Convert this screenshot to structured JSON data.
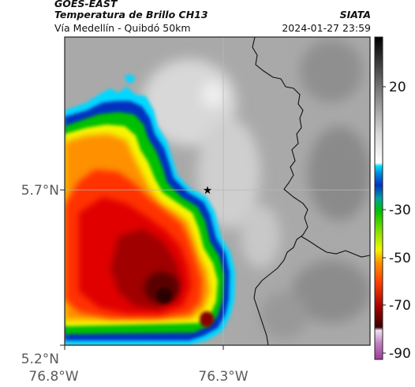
{
  "header": {
    "title_line1": "GOES-EAST",
    "title_line2": "Temperatura de Brillo CH13",
    "subtitle": "Vía Medellín - Quibdó 50km",
    "brand": "SIATA",
    "timestamp": "2024-01-27 23:59"
  },
  "map": {
    "lat_ticks": [
      "5.7°N",
      "5.2°N"
    ],
    "lon_ticks": [
      "76.8°W",
      "76.3°W"
    ],
    "marker_icon": "star-icon"
  },
  "colorbar": {
    "ticks": [
      "20",
      "-30",
      "-50",
      "-70",
      "-90"
    ],
    "range": [
      -95,
      45
    ],
    "colors": {
      "cold_magenta": "#9b3d9b",
      "deep_red": "#3a0000",
      "red": "#e00000",
      "orange": "#ff7f00",
      "yellow": "#f5f500",
      "green": "#00c000",
      "blue": "#0030c0",
      "cyan": "#00d8ff",
      "gray": "#9a9a9a"
    }
  }
}
